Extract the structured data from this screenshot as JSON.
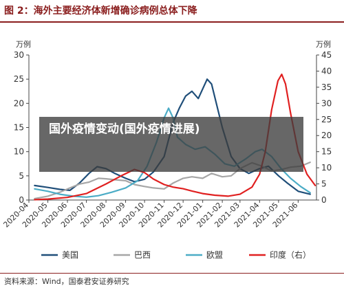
{
  "figure": {
    "title": "图 2：海外主要经济体新增确诊病例总体下降",
    "source": "资料来源：Wind，国泰君安证券研究"
  },
  "overlay": {
    "text": "国外疫情变动(国外疫情进展)"
  },
  "colors": {
    "title": "#8a1d1d",
    "us": "#1f4e79",
    "brazil": "#a6a6a6",
    "eu": "#4bacc6",
    "india": "#e02020"
  },
  "chart_data": {
    "type": "line",
    "left_axis_unit": "万例",
    "right_axis_unit": "万例",
    "ylim_left": [
      0,
      30
    ],
    "ylim_right": [
      0,
      45
    ],
    "yticks_left": [
      0,
      5,
      10,
      15,
      20,
      25,
      30
    ],
    "yticks_right": [
      0,
      5,
      10,
      15,
      20,
      25,
      30,
      35,
      40,
      45
    ],
    "x_range": [
      "2020-04-01",
      "2021-06-30"
    ],
    "xtick_labels": [
      "2020-04",
      "2020-05",
      "2020-06",
      "2020-07",
      "2020-08",
      "2020-09",
      "2020-10",
      "2020-11",
      "2020-12",
      "2021-01",
      "2021-02",
      "2021-03",
      "2021-04",
      "2021-05",
      "2021-06"
    ],
    "legend_position": "bottom",
    "series": [
      {
        "name": "美国",
        "axis": "left",
        "color": "#1f4e79",
        "points": [
          [
            "2020-04-10",
            3.0
          ],
          [
            "2020-05-01",
            2.6
          ],
          [
            "2020-05-20",
            2.2
          ],
          [
            "2020-06-05",
            2.0
          ],
          [
            "2020-06-20",
            3.5
          ],
          [
            "2020-07-05",
            5.5
          ],
          [
            "2020-07-18",
            6.9
          ],
          [
            "2020-08-01",
            6.5
          ],
          [
            "2020-08-15",
            5.5
          ],
          [
            "2020-09-01",
            4.5
          ],
          [
            "2020-09-15",
            3.8
          ],
          [
            "2020-10-01",
            4.3
          ],
          [
            "2020-10-15",
            5.8
          ],
          [
            "2020-11-01",
            9.0
          ],
          [
            "2020-11-15",
            16.0
          ],
          [
            "2020-11-25",
            19.0
          ],
          [
            "2020-12-05",
            21.5
          ],
          [
            "2020-12-15",
            22.5
          ],
          [
            "2020-12-25",
            21.0
          ],
          [
            "2021-01-08",
            25.0
          ],
          [
            "2021-01-15",
            24.0
          ],
          [
            "2021-02-01",
            15.0
          ],
          [
            "2021-02-15",
            9.0
          ],
          [
            "2021-03-01",
            6.5
          ],
          [
            "2021-03-15",
            5.5
          ],
          [
            "2021-04-01",
            6.5
          ],
          [
            "2021-04-15",
            7.0
          ],
          [
            "2021-05-01",
            5.0
          ],
          [
            "2021-05-15",
            3.5
          ],
          [
            "2021-06-01",
            1.8
          ],
          [
            "2021-06-20",
            1.2
          ]
        ]
      },
      {
        "name": "巴西",
        "axis": "left",
        "color": "#a6a6a6",
        "points": [
          [
            "2020-04-10",
            0.3
          ],
          [
            "2020-05-01",
            0.8
          ],
          [
            "2020-05-20",
            1.6
          ],
          [
            "2020-06-05",
            2.5
          ],
          [
            "2020-06-20",
            3.3
          ],
          [
            "2020-07-05",
            3.7
          ],
          [
            "2020-07-20",
            4.5
          ],
          [
            "2020-08-01",
            4.4
          ],
          [
            "2020-08-15",
            4.2
          ],
          [
            "2020-09-01",
            4.0
          ],
          [
            "2020-09-15",
            3.2
          ],
          [
            "2020-10-01",
            2.8
          ],
          [
            "2020-10-15",
            2.5
          ],
          [
            "2020-11-01",
            2.3
          ],
          [
            "2020-11-15",
            3.5
          ],
          [
            "2020-12-01",
            4.5
          ],
          [
            "2020-12-15",
            4.8
          ],
          [
            "2021-01-01",
            4.5
          ],
          [
            "2021-01-15",
            5.5
          ],
          [
            "2021-02-01",
            4.8
          ],
          [
            "2021-02-15",
            5.0
          ],
          [
            "2021-03-01",
            6.5
          ],
          [
            "2021-03-20",
            7.7
          ],
          [
            "2021-04-05",
            7.0
          ],
          [
            "2021-04-20",
            6.0
          ],
          [
            "2021-05-05",
            6.3
          ],
          [
            "2021-05-20",
            6.8
          ],
          [
            "2021-06-05",
            7.0
          ],
          [
            "2021-06-20",
            7.8
          ]
        ]
      },
      {
        "name": "欧盟",
        "axis": "left",
        "color": "#4bacc6",
        "points": [
          [
            "2020-04-10",
            2.3
          ],
          [
            "2020-05-01",
            1.8
          ],
          [
            "2020-05-20",
            1.2
          ],
          [
            "2020-06-10",
            0.8
          ],
          [
            "2020-07-01",
            0.6
          ],
          [
            "2020-07-20",
            0.9
          ],
          [
            "2020-08-10",
            1.6
          ],
          [
            "2020-09-01",
            2.5
          ],
          [
            "2020-09-20",
            4.0
          ],
          [
            "2020-10-05",
            7.0
          ],
          [
            "2020-10-20",
            12.0
          ],
          [
            "2020-11-01",
            17.0
          ],
          [
            "2020-11-08",
            19.0
          ],
          [
            "2020-11-15",
            17.0
          ],
          [
            "2020-11-22",
            13.0
          ],
          [
            "2020-12-05",
            11.5
          ],
          [
            "2020-12-20",
            10.5
          ],
          [
            "2021-01-05",
            11.0
          ],
          [
            "2021-01-20",
            9.5
          ],
          [
            "2021-02-05",
            7.5
          ],
          [
            "2021-02-20",
            7.0
          ],
          [
            "2021-03-10",
            8.5
          ],
          [
            "2021-03-25",
            10.0
          ],
          [
            "2021-04-05",
            10.5
          ],
          [
            "2021-04-20",
            9.0
          ],
          [
            "2021-05-05",
            6.5
          ],
          [
            "2021-05-20",
            4.5
          ],
          [
            "2021-06-05",
            2.8
          ],
          [
            "2021-06-20",
            1.5
          ]
        ]
      },
      {
        "name": "印度（右）",
        "axis": "right",
        "color": "#e02020",
        "points": [
          [
            "2020-04-10",
            0.1
          ],
          [
            "2020-05-01",
            0.3
          ],
          [
            "2020-06-01",
            0.8
          ],
          [
            "2020-07-01",
            2.0
          ],
          [
            "2020-08-01",
            5.0
          ],
          [
            "2020-08-25",
            7.5
          ],
          [
            "2020-09-15",
            9.5
          ],
          [
            "2020-10-01",
            8.5
          ],
          [
            "2020-10-15",
            6.5
          ],
          [
            "2020-11-01",
            4.8
          ],
          [
            "2020-11-15",
            4.0
          ],
          [
            "2020-12-01",
            3.5
          ],
          [
            "2020-12-15",
            2.8
          ],
          [
            "2021-01-01",
            2.0
          ],
          [
            "2021-01-20",
            1.5
          ],
          [
            "2021-02-10",
            1.2
          ],
          [
            "2021-03-01",
            1.8
          ],
          [
            "2021-03-20",
            4.0
          ],
          [
            "2021-04-01",
            8.0
          ],
          [
            "2021-04-10",
            15.0
          ],
          [
            "2021-04-20",
            28.0
          ],
          [
            "2021-04-30",
            37.0
          ],
          [
            "2021-05-06",
            39.0
          ],
          [
            "2021-05-12",
            36.0
          ],
          [
            "2021-05-20",
            27.0
          ],
          [
            "2021-06-01",
            15.0
          ],
          [
            "2021-06-15",
            8.0
          ],
          [
            "2021-06-28",
            4.5
          ]
        ]
      }
    ]
  }
}
